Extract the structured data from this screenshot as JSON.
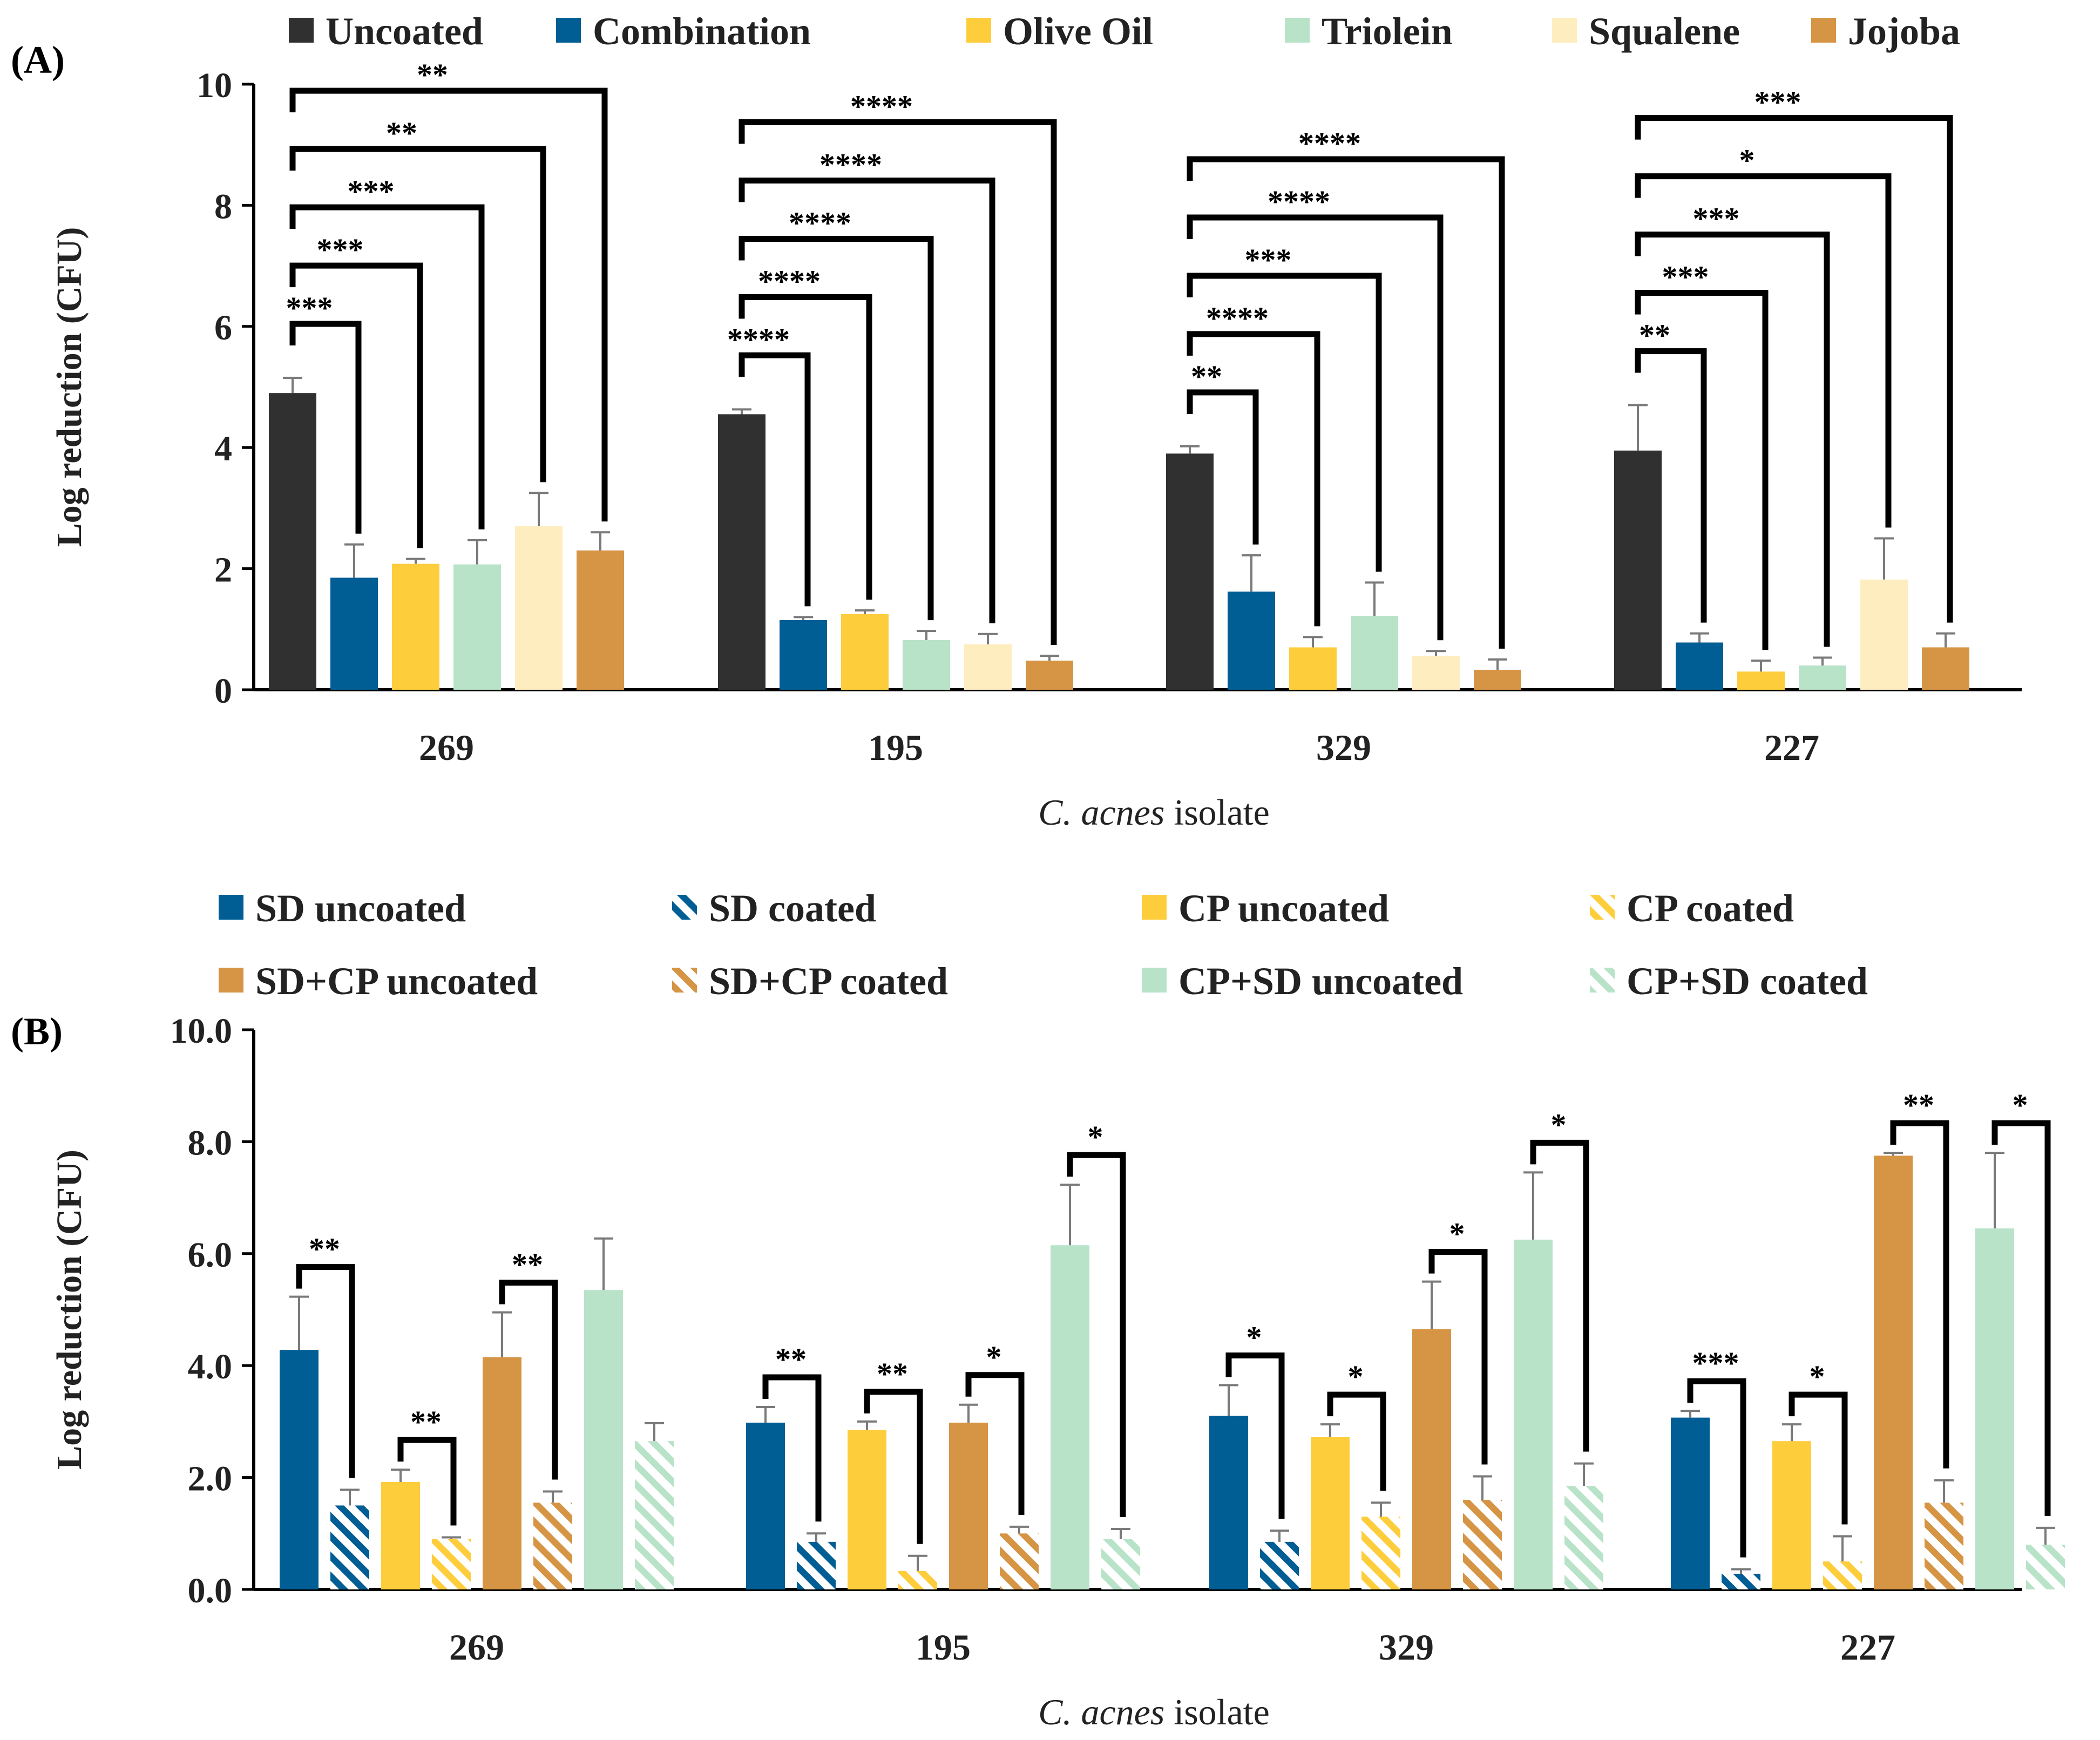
{
  "chart_data": [
    {
      "panel_label": "(A)",
      "type": "bar",
      "title": "",
      "xlabel_italic": "C. acnes",
      "xlabel_rest": " isolate",
      "ylabel": "Log reduction (CFU)",
      "ylim": [
        0,
        10
      ],
      "yticks": [
        0,
        2,
        4,
        6,
        8,
        10
      ],
      "ytick_labels": [
        "0",
        "2",
        "4",
        "6",
        "8",
        "10"
      ],
      "categories": [
        "269",
        "195",
        "329",
        "227"
      ],
      "series": [
        {
          "name": "Uncoated",
          "color": "#303030",
          "hatch": false,
          "values": [
            4.9,
            4.55,
            3.9,
            3.95
          ],
          "errors": [
            0.25,
            0.08,
            0.12,
            0.75
          ]
        },
        {
          "name": "Combination",
          "color": "#005e94",
          "hatch": false,
          "values": [
            1.85,
            1.15,
            1.62,
            0.78
          ],
          "errors": [
            0.55,
            0.05,
            0.6,
            0.15
          ]
        },
        {
          "name": "Olive Oil",
          "color": "#fecd3c",
          "hatch": false,
          "values": [
            2.08,
            1.25,
            0.7,
            0.3
          ],
          "errors": [
            0.08,
            0.06,
            0.17,
            0.18
          ]
        },
        {
          "name": "Triolein",
          "color": "#b8e3c9",
          "hatch": false,
          "values": [
            2.07,
            0.82,
            1.22,
            0.4
          ],
          "errors": [
            0.4,
            0.15,
            0.55,
            0.13
          ]
        },
        {
          "name": "Squalene",
          "color": "#feedbe",
          "hatch": false,
          "values": [
            2.7,
            0.75,
            0.56,
            1.82
          ],
          "errors": [
            0.55,
            0.17,
            0.08,
            0.68
          ]
        },
        {
          "name": "Jojoba",
          "color": "#d69445",
          "hatch": false,
          "values": [
            2.3,
            0.48,
            0.33,
            0.7
          ],
          "errors": [
            0.3,
            0.08,
            0.17,
            0.23
          ]
        }
      ],
      "significance": [
        {
          "category": "269",
          "compare": [
            "Uncoated",
            "Combination"
          ],
          "label": "***"
        },
        {
          "category": "269",
          "compare": [
            "Uncoated",
            "Olive Oil"
          ],
          "label": "***"
        },
        {
          "category": "269",
          "compare": [
            "Uncoated",
            "Triolein"
          ],
          "label": "***"
        },
        {
          "category": "269",
          "compare": [
            "Uncoated",
            "Squalene"
          ],
          "label": "**"
        },
        {
          "category": "269",
          "compare": [
            "Uncoated",
            "Jojoba"
          ],
          "label": "**"
        },
        {
          "category": "195",
          "compare": [
            "Uncoated",
            "Combination"
          ],
          "label": "****"
        },
        {
          "category": "195",
          "compare": [
            "Uncoated",
            "Olive Oil"
          ],
          "label": "****"
        },
        {
          "category": "195",
          "compare": [
            "Uncoated",
            "Triolein"
          ],
          "label": "****"
        },
        {
          "category": "195",
          "compare": [
            "Uncoated",
            "Squalene"
          ],
          "label": "****"
        },
        {
          "category": "195",
          "compare": [
            "Uncoated",
            "Jojoba"
          ],
          "label": "****"
        },
        {
          "category": "329",
          "compare": [
            "Uncoated",
            "Combination"
          ],
          "label": "**"
        },
        {
          "category": "329",
          "compare": [
            "Uncoated",
            "Olive Oil"
          ],
          "label": "****"
        },
        {
          "category": "329",
          "compare": [
            "Uncoated",
            "Triolein"
          ],
          "label": "***"
        },
        {
          "category": "329",
          "compare": [
            "Uncoated",
            "Squalene"
          ],
          "label": "****"
        },
        {
          "category": "329",
          "compare": [
            "Uncoated",
            "Jojoba"
          ],
          "label": "****"
        },
        {
          "category": "227",
          "compare": [
            "Uncoated",
            "Combination"
          ],
          "label": "**"
        },
        {
          "category": "227",
          "compare": [
            "Uncoated",
            "Olive Oil"
          ],
          "label": "***"
        },
        {
          "category": "227",
          "compare": [
            "Uncoated",
            "Triolein"
          ],
          "label": "***"
        },
        {
          "category": "227",
          "compare": [
            "Uncoated",
            "Squalene"
          ],
          "label": "*"
        },
        {
          "category": "227",
          "compare": [
            "Uncoated",
            "Jojoba"
          ],
          "label": "***"
        }
      ]
    },
    {
      "panel_label": "(B)",
      "type": "bar",
      "title": "",
      "xlabel_italic": "C. acnes",
      "xlabel_rest": " isolate",
      "ylabel": "Log reduction (CFU)",
      "ylim": [
        0,
        10
      ],
      "yticks": [
        0,
        2,
        4,
        6,
        8,
        10
      ],
      "ytick_labels": [
        "0.0",
        "2.0",
        "4.0",
        "6.0",
        "8.0",
        "10.0"
      ],
      "categories": [
        "269",
        "195",
        "329",
        "227"
      ],
      "series": [
        {
          "name": "SD uncoated",
          "color": "#005e94",
          "hatch": false,
          "values": [
            4.28,
            2.98,
            3.1,
            3.07
          ],
          "errors": [
            0.95,
            0.28,
            0.55,
            0.12
          ]
        },
        {
          "name": "SD coated",
          "color": "#005e94",
          "hatch": true,
          "values": [
            1.5,
            0.85,
            0.85,
            0.28
          ],
          "errors": [
            0.28,
            0.15,
            0.2,
            0.08
          ]
        },
        {
          "name": "CP uncoated",
          "color": "#fecd3c",
          "hatch": false,
          "values": [
            1.92,
            2.85,
            2.72,
            2.65
          ],
          "errors": [
            0.22,
            0.15,
            0.23,
            0.3
          ]
        },
        {
          "name": "CP  coated",
          "color": "#fecd3c",
          "hatch": true,
          "values": [
            0.9,
            0.33,
            1.3,
            0.5
          ],
          "errors": [
            0.03,
            0.27,
            0.25,
            0.45
          ]
        },
        {
          "name": "SD+CP   uncoated",
          "color": "#d69445",
          "hatch": false,
          "values": [
            4.15,
            2.98,
            4.65,
            7.75
          ],
          "errors": [
            0.8,
            0.32,
            0.85,
            0.05
          ]
        },
        {
          "name": "SD+CP  coated",
          "color": "#d69445",
          "hatch": true,
          "values": [
            1.55,
            1.0,
            1.6,
            1.55
          ],
          "errors": [
            0.2,
            0.12,
            0.42,
            0.4
          ]
        },
        {
          "name": "CP+SD   uncoated",
          "color": "#b8e3c9",
          "hatch": false,
          "values": [
            5.35,
            6.15,
            6.25,
            6.45
          ],
          "errors": [
            0.92,
            1.08,
            1.2,
            1.35
          ]
        },
        {
          "name": "CP+SD   coated",
          "color": "#b8e3c9",
          "hatch": true,
          "values": [
            2.65,
            0.9,
            1.85,
            0.8
          ],
          "errors": [
            0.32,
            0.18,
            0.4,
            0.3
          ]
        }
      ],
      "significance": [
        {
          "category": "269",
          "compare": [
            "SD uncoated",
            "SD coated"
          ],
          "label": "**"
        },
        {
          "category": "269",
          "compare": [
            "CP uncoated",
            "CP  coated"
          ],
          "label": "**"
        },
        {
          "category": "269",
          "compare": [
            "SD+CP   uncoated",
            "SD+CP  coated"
          ],
          "label": "**"
        },
        {
          "category": "195",
          "compare": [
            "SD uncoated",
            "SD coated"
          ],
          "label": "**"
        },
        {
          "category": "195",
          "compare": [
            "CP uncoated",
            "CP  coated"
          ],
          "label": "**"
        },
        {
          "category": "195",
          "compare": [
            "SD+CP   uncoated",
            "SD+CP  coated"
          ],
          "label": "*"
        },
        {
          "category": "195",
          "compare": [
            "CP+SD   uncoated",
            "CP+SD   coated"
          ],
          "label": "*"
        },
        {
          "category": "329",
          "compare": [
            "SD uncoated",
            "SD coated"
          ],
          "label": "*"
        },
        {
          "category": "329",
          "compare": [
            "CP uncoated",
            "CP  coated"
          ],
          "label": "*"
        },
        {
          "category": "329",
          "compare": [
            "SD+CP   uncoated",
            "SD+CP  coated"
          ],
          "label": "*"
        },
        {
          "category": "329",
          "compare": [
            "CP+SD   uncoated",
            "CP+SD   coated"
          ],
          "label": "*"
        },
        {
          "category": "227",
          "compare": [
            "SD uncoated",
            "SD coated"
          ],
          "label": "***"
        },
        {
          "category": "227",
          "compare": [
            "CP uncoated",
            "CP  coated"
          ],
          "label": "*"
        },
        {
          "category": "227",
          "compare": [
            "SD+CP   uncoated",
            "SD+CP  coated"
          ],
          "label": "**"
        },
        {
          "category": "227",
          "compare": [
            "CP+SD   uncoated",
            "CP+SD   coated"
          ],
          "label": "*"
        }
      ]
    }
  ]
}
